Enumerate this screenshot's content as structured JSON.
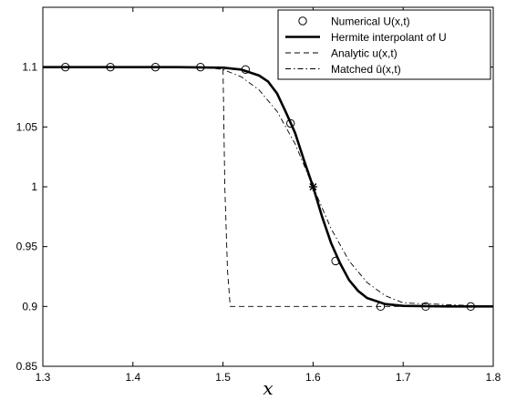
{
  "chart_data": {
    "type": "line",
    "title": "",
    "xlabel": "x",
    "ylabel": "",
    "xlim": [
      1.3,
      1.8
    ],
    "ylim": [
      0.85,
      1.15
    ],
    "xticks": [
      "1.3",
      "1.4",
      "1.5",
      "1.6",
      "1.7",
      "1.8"
    ],
    "yticks": [
      "0.85",
      "0.9",
      "0.95",
      "1",
      "1.05",
      "1.1"
    ],
    "grid": false,
    "legend_position": "top-right",
    "series": [
      {
        "name": "Numerical U(x,t)",
        "style": "markers-circle",
        "x": [
          1.325,
          1.375,
          1.425,
          1.475,
          1.525,
          1.575,
          1.625,
          1.675,
          1.725,
          1.775
        ],
        "y": [
          1.1,
          1.1,
          1.1,
          1.1,
          1.098,
          1.053,
          0.938,
          0.9,
          0.9,
          0.9
        ]
      },
      {
        "name": "Hermite interpolant of U",
        "style": "solid-thick",
        "x": [
          1.3,
          1.45,
          1.5,
          1.52,
          1.54,
          1.55,
          1.56,
          1.57,
          1.58,
          1.59,
          1.6,
          1.61,
          1.62,
          1.63,
          1.64,
          1.65,
          1.66,
          1.68,
          1.7,
          1.75,
          1.8
        ],
        "y": [
          1.1,
          1.1,
          1.0995,
          1.098,
          1.093,
          1.088,
          1.078,
          1.062,
          1.045,
          1.022,
          1.0,
          0.975,
          0.953,
          0.936,
          0.922,
          0.913,
          0.907,
          0.902,
          0.9005,
          0.9,
          0.9
        ]
      },
      {
        "name": "Analytic u(x,t)",
        "style": "dashed",
        "x": [
          1.3,
          1.5,
          1.502,
          1.505,
          1.508,
          1.8
        ],
        "y": [
          1.1,
          1.1,
          1.0,
          0.93,
          0.9,
          0.9
        ]
      },
      {
        "name": "Matched û(x,t)",
        "style": "dash-dot",
        "x": [
          1.3,
          1.48,
          1.5,
          1.52,
          1.54,
          1.56,
          1.58,
          1.6,
          1.62,
          1.64,
          1.66,
          1.68,
          1.7,
          1.8
        ],
        "y": [
          1.1,
          1.1,
          1.098,
          1.092,
          1.081,
          1.063,
          1.036,
          1.0,
          0.965,
          0.938,
          0.92,
          0.909,
          0.903,
          0.9
        ]
      }
    ],
    "annotations": [
      {
        "label": "star",
        "x": 1.6,
        "y": 1.0
      }
    ]
  }
}
